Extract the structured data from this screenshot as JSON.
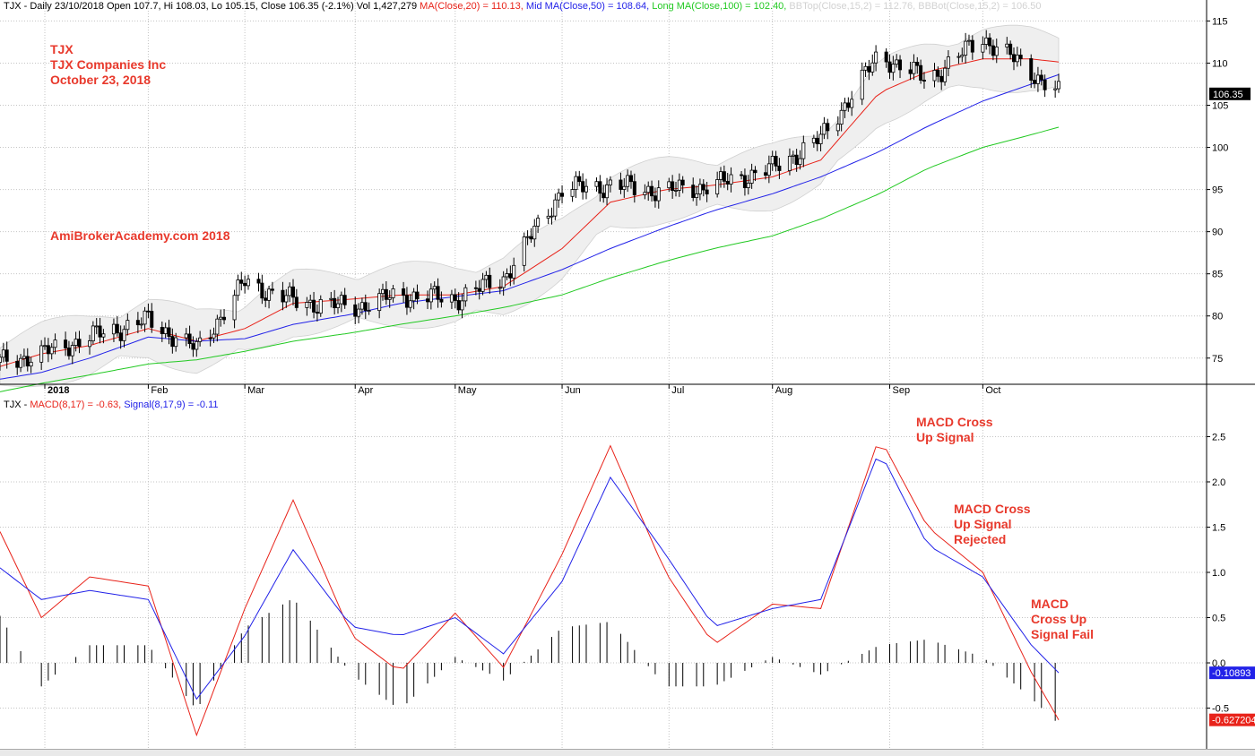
{
  "header": {
    "symbol": "TJX",
    "info": "- Daily 23/10/2018 Open 107.7, Hi 108.03, Lo 105.15, Close 106.35 (-2.1%) Vol 1,427,279",
    "ma20": "MA(Close,20) = 110.13,",
    "ma50": "Mid MA(Close,50) = 108.64,",
    "ma100": "Long MA(Close,100) = 102.40,",
    "bbtop": "BBTop(Close,15,2) = 112.76,",
    "bbbot": "BBBot(Close,15,2) = 106.50",
    "colors": {
      "ma20": "#e8231a",
      "ma50": "#2222e8",
      "ma100": "#22c922",
      "bb": "#c8c8c8"
    }
  },
  "macd_header": {
    "prefix": "TJX -",
    "macd": "MACD(8,17) = -0.63,",
    "signal": "Signal(8,17,9) = -0.11"
  },
  "annotations": {
    "company": "TJX\nTJX Companies Inc\nOctober 23, 2018",
    "watermark": "AmiBrokerAcademy.com 2018",
    "a1": "MACD Cross\nUp Signal",
    "a2": "MACD Cross\nUp Signal\nRejected",
    "a3": "MACD\nCross Up\nSignal Fail"
  },
  "chart_data": [
    {
      "type": "candlestick",
      "title": "TJX - Daily",
      "ylim": [
        72,
        116
      ],
      "y_ticks": [
        75,
        80,
        85,
        90,
        95,
        100,
        105,
        110,
        115
      ],
      "x_ticks": [
        "2018",
        "Feb",
        "Mar",
        "Apr",
        "May",
        "Jun",
        "Jul",
        "Aug",
        "Sep",
        "Oct"
      ],
      "last_price_label": "106.35",
      "x": [
        "2017-12-20",
        "2018-01-01",
        "2018-01-15",
        "2018-02-01",
        "2018-02-15",
        "2018-03-01",
        "2018-03-15",
        "2018-04-01",
        "2018-04-15",
        "2018-05-01",
        "2018-05-15",
        "2018-06-01",
        "2018-06-15",
        "2018-07-01",
        "2018-07-15",
        "2018-08-01",
        "2018-08-15",
        "2018-09-01",
        "2018-09-15",
        "2018-10-01",
        "2018-10-15",
        "2018-10-23"
      ],
      "close": [
        74.5,
        75.5,
        77.5,
        79.5,
        76.0,
        84.0,
        81.8,
        81.0,
        82.5,
        82.0,
        84.5,
        95.0,
        95.5,
        94.8,
        95.5,
        97.5,
        101.0,
        111.0,
        108.0,
        113.0,
        109.0,
        106.35
      ],
      "series": [
        {
          "name": "MA(Close,20)",
          "values": [
            74.0,
            75.5,
            76.5,
            78.5,
            77.0,
            78.5,
            81.5,
            82.0,
            82.5,
            82.5,
            83.5,
            88.0,
            93.5,
            95.0,
            95.5,
            96.5,
            98.5,
            106.5,
            109.0,
            110.5,
            110.5,
            110.13
          ]
        },
        {
          "name": "Mid MA(Close,50)",
          "values": [
            72.5,
            73.3,
            75.0,
            77.5,
            77.0,
            77.3,
            79.0,
            80.2,
            81.5,
            82.3,
            83.0,
            85.5,
            88.0,
            90.5,
            92.5,
            94.5,
            96.5,
            99.5,
            102.5,
            105.5,
            107.5,
            108.64
          ]
        },
        {
          "name": "Long MA(Close,100)",
          "values": [
            71.0,
            72.0,
            73.0,
            74.3,
            74.8,
            75.8,
            77.0,
            78.0,
            79.0,
            80.0,
            81.0,
            82.5,
            84.5,
            86.5,
            88.0,
            89.5,
            91.5,
            94.5,
            97.5,
            100.0,
            101.5,
            102.4
          ]
        }
      ]
    },
    {
      "type": "line",
      "title": "TJX - MACD(8,17), Signal(8,17,9)",
      "ylim": [
        -0.95,
        2.95
      ],
      "y_ticks": [
        -0.5,
        0.0,
        0.5,
        1.0,
        1.5,
        2.0,
        2.5
      ],
      "last_value_labels": {
        "signal": "-0.10893",
        "macd": "-0.627204"
      },
      "x": [
        "2017-12-20",
        "2018-01-01",
        "2018-01-15",
        "2018-02-01",
        "2018-02-15",
        "2018-03-01",
        "2018-03-15",
        "2018-04-01",
        "2018-04-15",
        "2018-05-01",
        "2018-05-15",
        "2018-06-01",
        "2018-06-15",
        "2018-07-01",
        "2018-07-15",
        "2018-08-01",
        "2018-08-15",
        "2018-09-01",
        "2018-09-15",
        "2018-10-01",
        "2018-10-15",
        "2018-10-23"
      ],
      "series": [
        {
          "name": "MACD(8,17)",
          "values": [
            1.45,
            0.5,
            0.95,
            0.85,
            -0.8,
            0.6,
            1.8,
            0.3,
            -0.1,
            0.55,
            -0.05,
            1.2,
            2.4,
            1.0,
            0.2,
            0.65,
            0.6,
            2.5,
            1.5,
            1.0,
            -0.1,
            -0.63
          ]
        },
        {
          "name": "Signal(8,17,9)",
          "values": [
            1.05,
            0.7,
            0.8,
            0.7,
            -0.4,
            0.3,
            1.25,
            0.4,
            0.3,
            0.5,
            0.1,
            0.9,
            2.05,
            1.2,
            0.4,
            0.6,
            0.7,
            2.35,
            1.3,
            0.95,
            0.2,
            -0.11
          ]
        }
      ]
    }
  ]
}
